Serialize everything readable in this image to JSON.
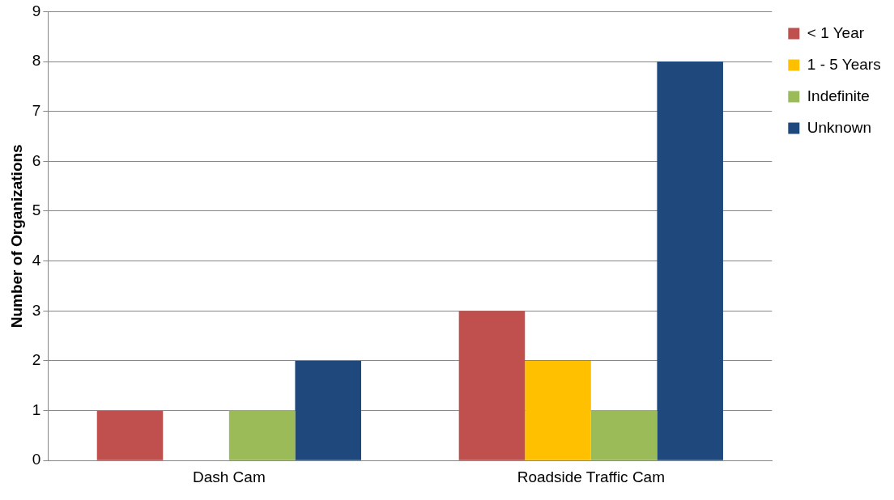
{
  "chart_data": {
    "type": "bar",
    "ylabel": "Number of Organizations",
    "categories": [
      "Dash Cam",
      "Roadside Traffic Cam"
    ],
    "series": [
      {
        "name": "< 1 Year",
        "color": "#c0504d",
        "values": [
          1,
          3
        ]
      },
      {
        "name": "1 - 5 Years",
        "color": "#ffc000",
        "values": [
          0,
          2
        ]
      },
      {
        "name": "Indefinite",
        "color": "#9bbb59",
        "values": [
          1,
          1
        ]
      },
      {
        "name": "Unknown",
        "color": "#1f497d",
        "values": [
          2,
          8
        ]
      }
    ],
    "ylim": [
      0,
      9
    ],
    "yticks": [
      0,
      1,
      2,
      3,
      4,
      5,
      6,
      7,
      8,
      9
    ],
    "grid": "y",
    "legend": "right"
  }
}
